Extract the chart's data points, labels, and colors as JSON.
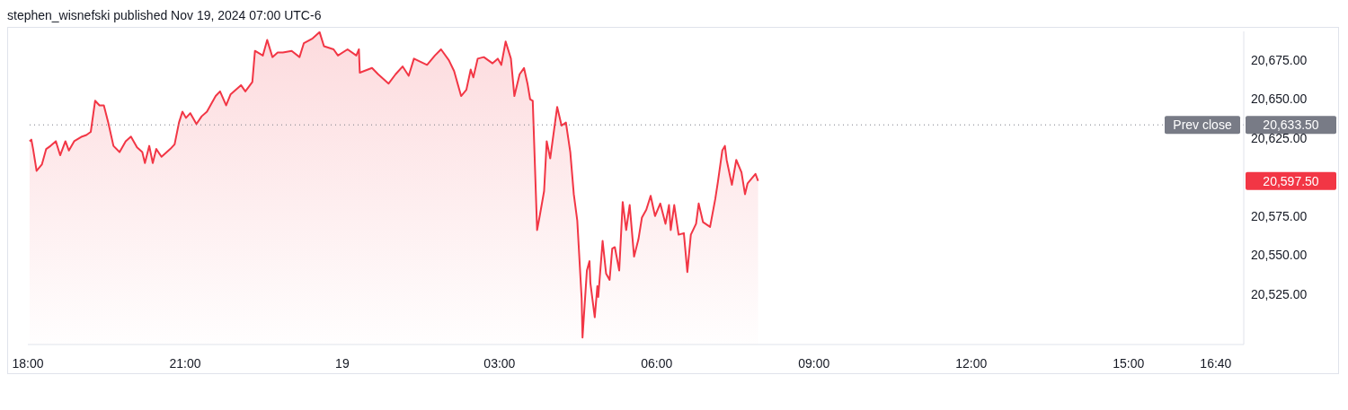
{
  "chart_data": {
    "type": "area",
    "title": "stephen_wisnefski published Nov 19, 2024 07:00 UTC-6",
    "x": [
      "2024-11-18T18:02",
      "2024-11-18T18:04",
      "2024-11-18T18:06",
      "2024-11-18T18:10",
      "2024-11-18T18:16",
      "2024-11-18T18:21",
      "2024-11-18T18:26",
      "2024-11-18T18:32",
      "2024-11-18T18:37",
      "2024-11-18T18:43",
      "2024-11-18T18:47",
      "2024-11-18T18:53",
      "2024-11-18T19:02",
      "2024-11-18T19:07",
      "2024-11-18T19:12",
      "2024-11-18T19:17",
      "2024-11-18T19:22",
      "2024-11-18T19:27",
      "2024-11-18T19:32",
      "2024-11-18T19:38",
      "2024-11-18T19:45",
      "2024-11-18T19:52",
      "2024-11-18T19:58",
      "2024-11-18T20:05",
      "2024-11-18T20:11",
      "2024-11-18T20:14",
      "2024-11-18T20:19",
      "2024-11-18T20:23",
      "2024-11-18T20:27",
      "2024-11-18T20:33",
      "2024-11-18T20:43",
      "2024-11-18T20:48",
      "2024-11-18T20:53",
      "2024-11-18T20:57",
      "2024-11-18T21:01",
      "2024-11-18T21:06",
      "2024-11-18T21:13",
      "2024-11-18T21:19",
      "2024-11-18T21:25",
      "2024-11-18T21:29",
      "2024-11-18T21:35",
      "2024-11-18T21:40",
      "2024-11-18T21:47",
      "2024-11-18T21:52",
      "2024-11-18T22:04",
      "2024-11-18T22:09",
      "2024-11-18T22:17",
      "2024-11-18T22:20",
      "2024-11-18T22:29",
      "2024-11-18T22:34",
      "2024-11-18T22:40",
      "2024-11-18T22:46",
      "2024-11-18T22:52",
      "2024-11-18T23:02",
      "2024-11-18T23:11",
      "2024-11-18T23:16",
      "2024-11-18T23:26",
      "2024-11-18T23:34",
      "2024-11-18T23:39",
      "2024-11-18T23:50",
      "2024-11-18T23:55",
      "2024-11-19T00:06",
      "2024-11-19T00:16",
      "2024-11-19T00:19",
      "2024-11-19T00:20",
      "2024-11-19T00:34",
      "2024-11-19T00:41",
      "2024-11-19T00:53",
      "2024-11-19T01:01",
      "2024-11-19T01:09",
      "2024-11-19T01:16",
      "2024-11-19T01:22",
      "2024-11-19T01:37",
      "2024-11-19T01:46",
      "2024-11-19T01:53",
      "2024-11-19T02:02",
      "2024-11-19T02:08",
      "2024-11-19T02:16",
      "2024-11-19T02:22",
      "2024-11-19T02:27",
      "2024-11-19T02:30",
      "2024-11-19T02:35",
      "2024-11-19T02:42",
      "2024-11-19T02:52",
      "2024-11-19T02:58",
      "2024-11-19T03:02",
      "2024-11-19T03:07",
      "2024-11-19T03:13",
      "2024-11-19T03:17",
      "2024-11-19T03:23",
      "2024-11-19T03:28",
      "2024-11-19T03:32",
      "2024-11-19T03:35",
      "2024-11-19T03:38",
      "2024-11-19T03:43",
      "2024-11-19T03:46",
      "2024-11-19T03:51",
      "2024-11-19T03:54",
      "2024-11-19T03:58",
      "2024-11-19T04:06",
      "2024-11-19T04:11",
      "2024-11-19T04:16",
      "2024-11-19T04:21",
      "2024-11-19T04:25",
      "2024-11-19T04:29",
      "2024-11-19T04:34",
      "2024-11-19T04:35",
      "2024-11-19T04:40",
      "2024-11-19T04:43",
      "2024-11-19T04:44",
      "2024-11-19T04:49",
      "2024-11-19T04:52",
      "2024-11-19T04:53",
      "2024-11-19T04:58",
      "2024-11-19T05:02",
      "2024-11-19T05:06",
      "2024-11-19T05:09",
      "2024-11-19T05:12",
      "2024-11-19T05:17",
      "2024-11-19T05:21",
      "2024-11-19T05:25",
      "2024-11-19T05:29",
      "2024-11-19T05:34",
      "2024-11-19T05:39",
      "2024-11-19T05:43",
      "2024-11-19T05:48",
      "2024-11-19T05:53",
      "2024-11-19T05:58",
      "2024-11-19T06:04",
      "2024-11-19T06:10",
      "2024-11-19T06:14",
      "2024-11-19T06:16",
      "2024-11-19T06:20",
      "2024-11-19T06:25",
      "2024-11-19T06:31",
      "2024-11-19T06:35",
      "2024-11-19T06:39",
      "2024-11-19T06:45",
      "2024-11-19T06:48",
      "2024-11-19T06:53",
      "2024-11-19T07:01",
      "2024-11-19T07:07",
      "2024-11-19T07:10",
      "2024-11-19T07:15",
      "2024-11-19T07:18",
      "2024-11-19T07:20",
      "2024-11-19T07:26",
      "2024-11-19T07:31",
      "2024-11-19T07:37",
      "2024-11-19T07:41",
      "2024-11-19T07:44",
      "2024-11-19T07:50",
      "2024-11-19T07:53",
      "2024-11-19T07:56"
    ],
    "series": [
      {
        "color": "#f23645",
        "values": [
          20623,
          20624,
          20618,
          20604,
          20608,
          20618,
          20620,
          20623,
          20614,
          20623,
          20617,
          20623,
          20626,
          20627,
          20629,
          20649,
          20646,
          20646,
          20635,
          20620,
          20616,
          20623,
          20626,
          20619,
          20616,
          20609,
          20620,
          20609,
          20618,
          20613,
          20618,
          20621,
          20635,
          20642,
          20638,
          20641,
          20634,
          20639,
          20642,
          20646,
          20652,
          20655,
          20646,
          20653,
          20659,
          20655,
          20661,
          20681,
          20678,
          20688,
          20677,
          20680,
          20680,
          20681,
          20677,
          20686,
          20689,
          20693,
          20684,
          20682,
          20678,
          20682,
          20678,
          20682,
          20667,
          20670,
          20666,
          20660,
          20666,
          20671,
          20665,
          20676,
          20672,
          20678,
          20682,
          20675,
          20668,
          20652,
          20656,
          20669,
          20664,
          20676,
          20677,
          20673,
          20676,
          20672,
          20687,
          20676,
          20652,
          20666,
          20670,
          20660,
          20650,
          20649,
          20566,
          20575,
          20591,
          20623,
          20612,
          20645,
          20633,
          20635,
          20616,
          20589,
          20572,
          20522,
          20497,
          20540,
          20546,
          20532,
          20510,
          20530,
          20523,
          20559,
          20538,
          20534,
          20554,
          20555,
          20540,
          20584,
          20566,
          20582,
          20549,
          20560,
          20574,
          20579,
          20588,
          20575,
          20583,
          20570,
          20582,
          20566,
          20582,
          20563,
          20564,
          20539,
          20563,
          20570,
          20583,
          20571,
          20568,
          20586,
          20597,
          20617,
          20620,
          20611,
          20595,
          20611,
          20603,
          20589,
          20596,
          20600,
          20602,
          20597.5
        ]
      }
    ],
    "xlim": [
      "2024-11-18T18:00",
      "2024-11-19T17:12"
    ],
    "xticks": [
      {
        "value": "2024-11-18T18:00",
        "label": "18:00"
      },
      {
        "value": "2024-11-18T21:00",
        "label": "21:00"
      },
      {
        "value": "2024-11-19T00:00",
        "label": "19"
      },
      {
        "value": "2024-11-19T03:00",
        "label": "03:00"
      },
      {
        "value": "2024-11-19T06:00",
        "label": "06:00"
      },
      {
        "value": "2024-11-19T09:00",
        "label": "09:00"
      },
      {
        "value": "2024-11-19T12:00",
        "label": "12:00"
      },
      {
        "value": "2024-11-19T15:00",
        "label": "15:00"
      },
      {
        "value": "2024-11-19T16:40",
        "label": "16:40"
      }
    ],
    "ylim": [
      20492.5,
      20693.5
    ],
    "yticks": [
      {
        "value": 20525,
        "label": "20,525.00"
      },
      {
        "value": 20550,
        "label": "20,550.00"
      },
      {
        "value": 20575,
        "label": "20,575.00"
      },
      {
        "value": 20625,
        "label": "20,625.00"
      },
      {
        "value": 20650,
        "label": "20,650.00"
      },
      {
        "value": 20675,
        "label": "20,675.00"
      }
    ],
    "ref_lines": [
      {
        "axis": "y",
        "value": 20633.5,
        "label": "Prev close",
        "color": "#787b86",
        "line_style": "dotted"
      }
    ],
    "annotations": [
      "20,633.50",
      "20,597.50"
    ]
  }
}
